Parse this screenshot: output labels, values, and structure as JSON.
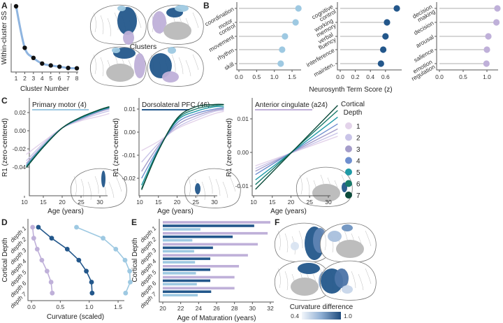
{
  "colors": {
    "light_blue": "#9ec9e2",
    "dark_blue": "#23578b",
    "purple": "#bfb0d9",
    "stem": "#c9c9c9",
    "depths": [
      "#e3d3ea",
      "#c9c4e8",
      "#a59dca",
      "#6f8fcf",
      "#1f9aa6",
      "#177a6a",
      "#0b4a3a"
    ]
  },
  "panels": {
    "a": "A",
    "b": "B",
    "c": "C",
    "d": "D",
    "e": "E",
    "f": "F"
  },
  "clusters_label": "Clusters",
  "chart_data": [
    {
      "id": "A",
      "type": "line",
      "title": "",
      "xlabel": "Cluster Number",
      "ylabel": "Within-cluster SS",
      "x": [
        1,
        2,
        3,
        4,
        5,
        6,
        7,
        8
      ],
      "values": [
        100,
        34,
        18,
        9,
        6,
        4,
        2,
        1.5
      ],
      "xticks": [
        "1",
        "2",
        "3",
        "4",
        "5",
        "6",
        "7",
        "8"
      ]
    },
    {
      "id": "B",
      "type": "scatter",
      "subtype": "lollipop",
      "xlabel": "Neurosynth Term Score (z)",
      "subplots": [
        {
          "color_key": "light_blue",
          "terms": [
            "coordination",
            "motor\ncontrol",
            "movement",
            "rhythm",
            "skill"
          ],
          "values": [
            1.68,
            1.6,
            1.3,
            1.22,
            1.18
          ],
          "xlim": [
            0,
            1.6
          ],
          "xticks": [
            "0.0",
            "0.5",
            "1.0",
            "1.5"
          ]
        },
        {
          "color_key": "dark_blue",
          "terms": [
            "cognitive\ncontrol",
            "working\nmemory",
            "verbal\nfluency",
            "interference",
            "mainten."
          ],
          "values": [
            0.75,
            0.62,
            0.6,
            0.57,
            0.54
          ],
          "xlim": [
            0,
            0.7
          ],
          "xticks": [
            "0.0",
            "0.2",
            "0.4",
            "0.6"
          ]
        },
        {
          "color_key": "purple",
          "terms": [
            "decision\nmaking",
            "decision",
            "arousal",
            "salience",
            "emotion\nregulation"
          ],
          "values": [
            1.22,
            1.2,
            1.03,
            1.0,
            0.99
          ],
          "xlim": [
            0,
            1.2
          ],
          "xticks": [
            "0.0",
            "0.5",
            "1.0"
          ]
        }
      ]
    },
    {
      "id": "C",
      "type": "line",
      "xlabel": "Age (years)",
      "ylabel": "R1 (zero-centered)",
      "legend_title": "Cortical\nDepth",
      "legend_labels": [
        "1",
        "2",
        "3",
        "4",
        "5",
        "6",
        "7"
      ],
      "legend_placement": "right",
      "subplots": [
        {
          "title": "Primary motor (4)",
          "color_key": "light_blue",
          "x": [
            10.5,
            15,
            20,
            25,
            30,
            32.5
          ],
          "xticks": [
            "10",
            "15",
            "20",
            "25",
            "30"
          ],
          "yticks": [
            "0.02",
            "0.00",
            "-0.02",
            "-0.04"
          ],
          "ylim": [
            -0.042,
            0.027
          ],
          "series": [
            [
              -0.026,
              -0.012,
              0.003,
              0.011,
              0.016,
              0.019
            ],
            [
              -0.033,
              -0.014,
              0.003,
              0.012,
              0.019,
              0.022
            ],
            [
              -0.036,
              -0.016,
              0.003,
              0.013,
              0.021,
              0.024
            ],
            [
              -0.038,
              -0.017,
              0.003,
              0.014,
              0.022,
              0.025
            ],
            [
              -0.039,
              -0.017,
              0.003,
              0.014,
              0.0225,
              0.0255
            ],
            [
              -0.04,
              -0.018,
              0.003,
              0.015,
              0.023,
              0.026
            ],
            [
              -0.0405,
              -0.018,
              0.003,
              0.015,
              0.0233,
              0.0265
            ]
          ]
        },
        {
          "title": "Dorsolateral PFC (46)",
          "color_key": "dark_blue",
          "x": [
            10.5,
            15,
            20,
            25,
            30,
            32.5
          ],
          "xticks": [
            "10",
            "15",
            "20",
            "25",
            "30"
          ],
          "yticks": [
            "0.01",
            "0.00",
            "-0.01",
            "-0.02"
          ],
          "ylim": [
            -0.027,
            0.013
          ],
          "series": [
            [
              -0.008,
              -0.004,
              0.0015,
              0.005,
              0.008,
              0.009
            ],
            [
              -0.013,
              -0.005,
              0.002,
              0.006,
              0.009,
              0.0095
            ],
            [
              -0.017,
              -0.006,
              0.003,
              0.007,
              0.0095,
              0.01
            ],
            [
              -0.02,
              -0.007,
              0.004,
              0.008,
              0.01,
              0.0105
            ],
            [
              -0.023,
              -0.0075,
              0.005,
              0.009,
              0.011,
              0.011
            ],
            [
              -0.0245,
              -0.008,
              0.0055,
              0.01,
              0.0115,
              0.0118
            ],
            [
              -0.025,
              -0.008,
              0.006,
              0.011,
              0.012,
              0.012
            ]
          ]
        },
        {
          "title": "Anterior cingulate (a24)",
          "color_key": "purple",
          "x": [
            10.5,
            32.5
          ],
          "xticks": [
            "10",
            "15",
            "20",
            "25",
            "30"
          ],
          "yticks": [
            "0.01",
            "0.00",
            "-0.01"
          ],
          "ylim": [
            -0.012,
            0.015
          ],
          "series": [
            [
              -0.004,
              0.0048
            ],
            [
              -0.0048,
              0.0058
            ],
            [
              -0.0056,
              0.007
            ],
            [
              -0.0066,
              0.0085
            ],
            [
              -0.0082,
              0.0105
            ],
            [
              -0.0096,
              0.0125
            ],
            [
              -0.011,
              0.014
            ]
          ]
        }
      ]
    },
    {
      "id": "D",
      "type": "line",
      "xlabel": "Curvature (scaled)",
      "ylabel": "Cortical Depth",
      "categories": [
        "depth 1",
        "depth 2",
        "depth 3",
        "depth 4",
        "depth 5",
        "depth 6",
        "depth 7"
      ],
      "xticks": [
        "0.0",
        "0.5",
        "1.0",
        "1.5"
      ],
      "xlim": [
        0,
        1.75
      ],
      "series": [
        {
          "color_key": "purple",
          "values": [
            0.02,
            0.04,
            0.1,
            0.18,
            0.27,
            0.34,
            0.36
          ]
        },
        {
          "color_key": "dark_blue",
          "values": [
            0.12,
            0.35,
            0.62,
            0.82,
            0.95,
            1.04,
            1.05
          ]
        },
        {
          "color_key": "light_blue",
          "values": [
            0.78,
            1.24,
            1.46,
            1.62,
            1.7,
            1.71,
            1.63
          ]
        }
      ]
    },
    {
      "id": "E",
      "type": "bar",
      "xlabel": "Age of Maturation (years)",
      "ylabel": "Cortical Depth",
      "categories": [
        "depth 1",
        "depth 2",
        "depth 3",
        "depth 4",
        "depth 5",
        "depth 6",
        "depth 7"
      ],
      "xticks": [
        "20",
        "22",
        "24",
        "26",
        "28",
        "30",
        "32"
      ],
      "xlim": [
        20,
        32.5
      ],
      "series": [
        {
          "color_key": "purple",
          "values": [
            32,
            31.7,
            30.6,
            29.5,
            28.5,
            28,
            28
          ]
        },
        {
          "color_key": "dark_blue",
          "values": [
            30.2,
            27.8,
            25.6,
            25.3,
            25.3,
            25.3,
            25.4
          ]
        },
        {
          "color_key": "light_blue",
          "values": [
            24.2,
            23.3,
            23.5,
            23.6,
            23.7,
            23.8,
            23.9
          ]
        }
      ]
    },
    {
      "id": "F",
      "type": "heatmap",
      "colorbar_label": "Curvature difference",
      "colorbar_min": "0.4",
      "colorbar_max": "1.0"
    }
  ]
}
